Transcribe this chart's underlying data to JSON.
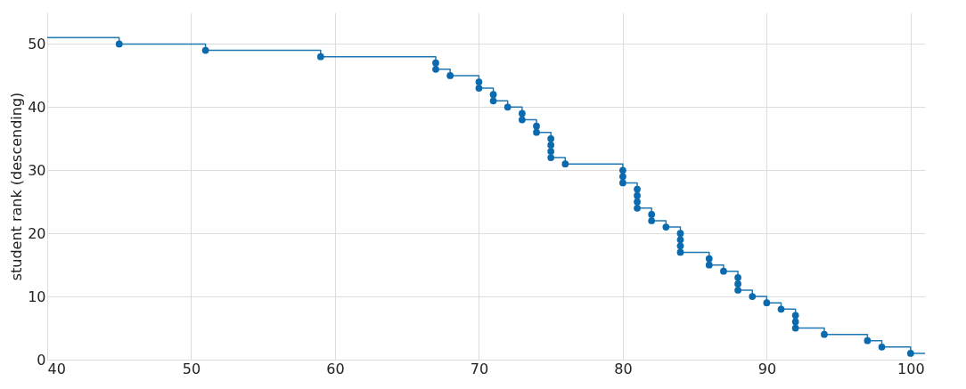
{
  "chart_data": {
    "type": "step",
    "ylabel": "student rank (descending)",
    "xlim": [
      40,
      101
    ],
    "ylim": [
      0,
      55
    ],
    "xticks": [
      40,
      50,
      60,
      70,
      80,
      90,
      100
    ],
    "yticks": [
      0,
      10,
      20,
      30,
      40,
      50
    ],
    "grid": true,
    "series": [
      {
        "color": "#1f77b4",
        "marker": "none",
        "x": [
          40,
          45,
          51,
          59,
          67,
          68,
          70,
          71,
          72,
          73,
          74,
          75,
          76,
          80,
          81,
          82,
          83,
          84,
          86,
          87,
          88,
          89,
          90,
          91,
          92,
          94,
          97,
          98,
          100,
          101
        ],
        "values": [
          51,
          50,
          49,
          48,
          46,
          45,
          43,
          41,
          40,
          38,
          36,
          32,
          31,
          28,
          24,
          22,
          21,
          17,
          15,
          14,
          11,
          10,
          9,
          8,
          5,
          4,
          3,
          2,
          1,
          1
        ]
      },
      {
        "type": "scatter",
        "color": "#0b6aad",
        "marker": "circle",
        "x": [
          45,
          51,
          59,
          67,
          67,
          68,
          70,
          70,
          71,
          71,
          72,
          73,
          73,
          74,
          74,
          75,
          75,
          75,
          75,
          76,
          80,
          80,
          80,
          81,
          81,
          81,
          81,
          82,
          82,
          83,
          84,
          84,
          84,
          84,
          86,
          86,
          87,
          88,
          88,
          88,
          89,
          90,
          91,
          92,
          92,
          92,
          94,
          97,
          98,
          100
        ],
        "values": [
          50,
          49,
          48,
          47,
          46,
          45,
          44,
          43,
          42,
          41,
          40,
          39,
          38,
          37,
          36,
          35,
          34,
          33,
          32,
          31,
          30,
          29,
          28,
          27,
          26,
          25,
          24,
          23,
          22,
          21,
          20,
          19,
          18,
          17,
          16,
          15,
          14,
          13,
          12,
          11,
          10,
          9,
          8,
          7,
          6,
          5,
          4,
          3,
          2,
          1
        ]
      }
    ]
  }
}
